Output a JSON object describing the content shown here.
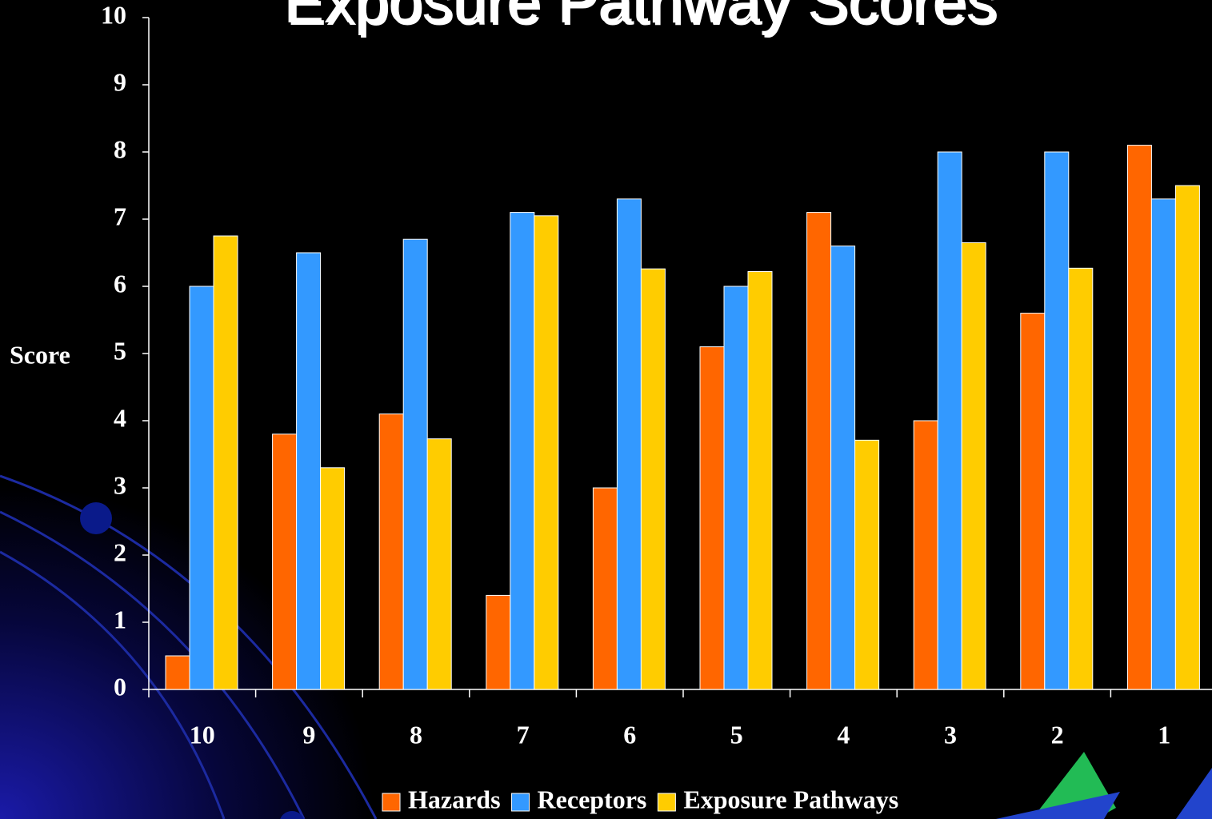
{
  "chart_data": {
    "type": "bar",
    "title": "Exposure Pathway Scores",
    "y_label": "Score",
    "categories": [
      "10",
      "9",
      "8",
      "7",
      "6",
      "5",
      "4",
      "3",
      "2",
      "1"
    ],
    "series": [
      {
        "name": "Hazards",
        "color": "#ff6600",
        "values": [
          0.5,
          3.8,
          4.1,
          1.4,
          3.0,
          5.1,
          7.1,
          4.0,
          5.6,
          8.1
        ]
      },
      {
        "name": "Receptors",
        "color": "#3399ff",
        "values": [
          6.0,
          6.5,
          6.7,
          7.1,
          7.3,
          6.0,
          6.6,
          8.0,
          8.0,
          7.3
        ]
      },
      {
        "name": "Exposure Pathways",
        "color": "#ffcc00",
        "values": [
          6.75,
          3.3,
          3.73,
          7.05,
          6.26,
          6.22,
          3.71,
          6.65,
          6.27,
          7.5
        ]
      }
    ],
    "ylim": [
      0,
      10
    ],
    "yticks": [
      0,
      1,
      2,
      3,
      4,
      5,
      6,
      7,
      8,
      9,
      10
    ],
    "grid": false,
    "legend": "bottom"
  }
}
